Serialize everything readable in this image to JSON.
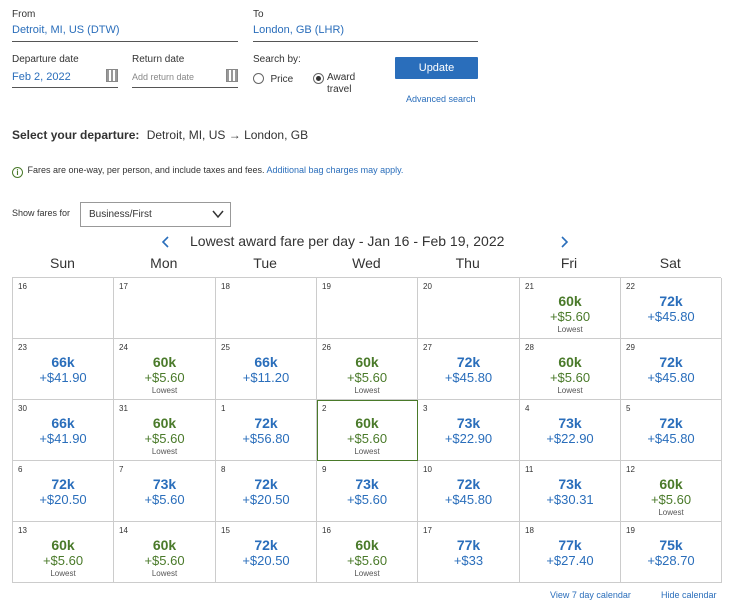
{
  "search": {
    "from_label": "From",
    "from_value": "Detroit, MI, US (DTW)",
    "to_label": "To",
    "to_value": "London, GB (LHR)",
    "departure_label": "Departure date",
    "departure_value": "Feb 2, 2022",
    "return_label": "Return date",
    "return_placeholder": "Add return date",
    "search_by_label": "Search by:",
    "price_label": "Price",
    "award_label_1": "Award",
    "award_label_2": "travel",
    "update_label": "Update",
    "advanced_label": "Advanced search"
  },
  "selection": {
    "heading": "Select your departure:",
    "route": "Detroit, MI, US → London, GB"
  },
  "notice": {
    "text": "Fares are one-way, per person, and include taxes and fees.",
    "link": "Additional bag charges may apply."
  },
  "filter": {
    "label": "Show fares for",
    "value": "Business/First"
  },
  "calendar": {
    "title": "Lowest award fare per day - Jan 16 - Feb 19, 2022",
    "days": [
      "Sun",
      "Mon",
      "Tue",
      "Wed",
      "Thu",
      "Fri",
      "Sat"
    ],
    "lowest_label": "Lowest",
    "weeks": [
      [
        {
          "d": "16"
        },
        {
          "d": "17"
        },
        {
          "d": "18"
        },
        {
          "d": "19"
        },
        {
          "d": "20"
        },
        {
          "d": "21",
          "m": "60k",
          "t": "+$5.60",
          "low": true
        },
        {
          "d": "22",
          "m": "72k",
          "t": "+$45.80"
        }
      ],
      [
        {
          "d": "23",
          "m": "66k",
          "t": "+$41.90"
        },
        {
          "d": "24",
          "m": "60k",
          "t": "+$5.60",
          "low": true
        },
        {
          "d": "25",
          "m": "66k",
          "t": "+$11.20"
        },
        {
          "d": "26",
          "m": "60k",
          "t": "+$5.60",
          "low": true
        },
        {
          "d": "27",
          "m": "72k",
          "t": "+$45.80"
        },
        {
          "d": "28",
          "m": "60k",
          "t": "+$5.60",
          "low": true
        },
        {
          "d": "29",
          "m": "72k",
          "t": "+$45.80"
        }
      ],
      [
        {
          "d": "30",
          "m": "66k",
          "t": "+$41.90"
        },
        {
          "d": "31",
          "m": "60k",
          "t": "+$5.60",
          "low": true
        },
        {
          "d": "1",
          "m": "72k",
          "t": "+$56.80"
        },
        {
          "d": "2",
          "m": "60k",
          "t": "+$5.60",
          "low": true,
          "sel": true
        },
        {
          "d": "3",
          "m": "73k",
          "t": "+$22.90"
        },
        {
          "d": "4",
          "m": "73k",
          "t": "+$22.90"
        },
        {
          "d": "5",
          "m": "72k",
          "t": "+$45.80"
        }
      ],
      [
        {
          "d": "6",
          "m": "72k",
          "t": "+$20.50"
        },
        {
          "d": "7",
          "m": "73k",
          "t": "+$5.60"
        },
        {
          "d": "8",
          "m": "72k",
          "t": "+$20.50"
        },
        {
          "d": "9",
          "m": "73k",
          "t": "+$5.60"
        },
        {
          "d": "10",
          "m": "72k",
          "t": "+$45.80"
        },
        {
          "d": "11",
          "m": "73k",
          "t": "+$30.31"
        },
        {
          "d": "12",
          "m": "60k",
          "t": "+$5.60",
          "low": true
        }
      ],
      [
        {
          "d": "13",
          "m": "60k",
          "t": "+$5.60",
          "low": true
        },
        {
          "d": "14",
          "m": "60k",
          "t": "+$5.60",
          "low": true
        },
        {
          "d": "15",
          "m": "72k",
          "t": "+$20.50"
        },
        {
          "d": "16",
          "m": "60k",
          "t": "+$5.60",
          "low": true
        },
        {
          "d": "17",
          "m": "77k",
          "t": "+$33"
        },
        {
          "d": "18",
          "m": "77k",
          "t": "+$27.40"
        },
        {
          "d": "19",
          "m": "75k",
          "t": "+$28.70"
        }
      ]
    ]
  },
  "footer": {
    "view7": "View 7 day calendar",
    "hide": "Hide calendar"
  },
  "colors": {
    "link_blue": "#2a6ebb",
    "lowest_green": "#4a7a2a"
  },
  "icons": [
    "calendar-icon",
    "info-icon",
    "chevron-down-icon",
    "chevron-left-icon",
    "chevron-right-icon"
  ]
}
